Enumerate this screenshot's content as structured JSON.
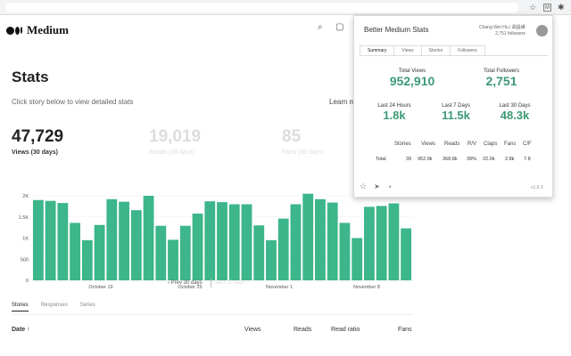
{
  "browser": {
    "star_icon": "☆",
    "ext_icon": "M",
    "puzzle_icon": "✱",
    "avatar_icon": "●"
  },
  "header": {
    "logo_text": "Medium",
    "search_icon": "⌕",
    "bookmark_icon": "▢"
  },
  "page": {
    "title": "Stats",
    "subtitle": "Click story below to view detailed stats",
    "learn_more": "Learn m",
    "views": {
      "value": "47,729",
      "label": "Views (30 days)"
    },
    "reads": {
      "value": "19,019",
      "label": "Reads (30 days)"
    },
    "fans": {
      "value": "85",
      "label": "Fans (30 days)"
    }
  },
  "chart_data": {
    "type": "bar",
    "yticks": [
      "2K",
      "1.5K",
      "1K",
      "500",
      "0"
    ],
    "ylim": [
      0,
      2000
    ],
    "xticks": [
      "October 19",
      "October 25",
      "November 1",
      "November 8"
    ],
    "values": [
      1900,
      1880,
      1830,
      1360,
      950,
      1310,
      1920,
      1860,
      1660,
      2000,
      1290,
      960,
      1290,
      1580,
      1870,
      1850,
      1800,
      1800,
      1300,
      950,
      1460,
      1800,
      2050,
      1920,
      1840,
      1360,
      1000,
      1740,
      1760,
      1820,
      1230
    ],
    "bar_color": "#3cb68a"
  },
  "pager": {
    "prev": "‹  Prev 30 days",
    "next": "Next 30 days  ›"
  },
  "tabs": [
    "Stories",
    "Responses",
    "Series"
  ],
  "table_header": {
    "date": "Date ↑",
    "views": "Views",
    "reads": "Reads",
    "ratio": "Read ratio",
    "fans": "Fans"
  },
  "popup": {
    "title": "Better Medium Stats",
    "user_name": "Chang-Wei Hu | 胡昌維",
    "user_followers": "2,751 followers",
    "tabs": [
      "Summary",
      "Views",
      "Stories",
      "Followers"
    ],
    "total_views": {
      "label": "Total Views",
      "value": "952,910"
    },
    "total_followers": {
      "label": "Total Followers",
      "value": "2,751"
    },
    "last24": {
      "label": "Last 24 Hours",
      "value": "1.8k"
    },
    "last7": {
      "label": "Last 7 Days",
      "value": "11.5k"
    },
    "last30": {
      "label": "Last 30 Days",
      "value": "48.3k"
    },
    "table": {
      "headers": [
        "Stories",
        "Views",
        "Reads",
        "R/V",
        "Claps",
        "Fans",
        "C/F"
      ],
      "total_label": "Total",
      "row": [
        "39",
        "952.9k",
        "368.8k",
        "39%",
        "22.0k",
        "2.8k",
        "7.8"
      ]
    },
    "footer": {
      "star_icon": "☆",
      "send_icon": "➤",
      "github_icon": "◔",
      "version": "v1.8.3"
    }
  }
}
